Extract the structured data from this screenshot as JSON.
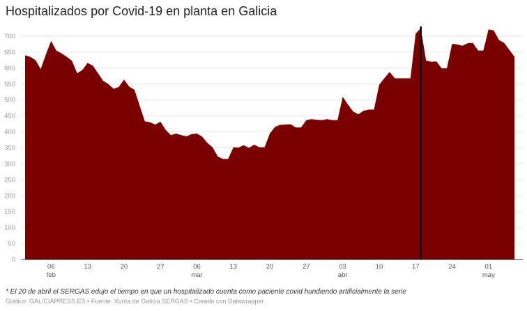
{
  "title": "Hospitalizados por Covid-19 en planta en Galicia",
  "note": "* El 20 de abril el SERGAS edujo el tiempo en que un hospitalizado cuenta como paciente covid hundiendo artificialmente la serie",
  "source": "Gráfico: GALICIAPRESS.ES • Fuente: Xunta de Galicia SERGAS • Creado con Datawrapper",
  "chart_data": {
    "type": "area",
    "title": "Hospitalizados por Covid-19 en planta en Galicia",
    "xlabel": "",
    "ylabel": "",
    "ylim": [
      0,
      700
    ],
    "yticks": [
      0,
      50,
      100,
      150,
      200,
      250,
      300,
      350,
      400,
      450,
      500,
      550,
      600,
      650,
      700
    ],
    "grid": true,
    "color": "#7a0000",
    "x": [
      "02-01",
      "02-02",
      "02-03",
      "02-04",
      "02-05",
      "02-06",
      "02-07",
      "02-08",
      "02-09",
      "02-10",
      "02-11",
      "02-12",
      "02-13",
      "02-14",
      "02-15",
      "02-16",
      "02-17",
      "02-18",
      "02-19",
      "02-20",
      "02-21",
      "02-22",
      "02-23",
      "02-24",
      "02-25",
      "02-26",
      "02-27",
      "02-28",
      "03-01",
      "03-02",
      "03-03",
      "03-04",
      "03-05",
      "03-06",
      "03-07",
      "03-08",
      "03-09",
      "03-10",
      "03-11",
      "03-12",
      "03-13",
      "03-14",
      "03-15",
      "03-16",
      "03-17",
      "03-18",
      "03-19",
      "03-20",
      "03-21",
      "03-22",
      "03-23",
      "03-24",
      "03-25",
      "03-26",
      "03-27",
      "03-28",
      "03-29",
      "03-30",
      "03-31",
      "04-01",
      "04-02",
      "04-03",
      "04-04",
      "04-05",
      "04-06",
      "04-07",
      "04-08",
      "04-09",
      "04-10",
      "04-11",
      "04-12",
      "04-13",
      "04-14",
      "04-15",
      "04-16",
      "04-17",
      "04-18",
      "04-19",
      "04-20",
      "04-21",
      "04-22",
      "04-23",
      "04-24",
      "04-25",
      "04-26",
      "04-27",
      "04-28",
      "04-29",
      "04-30",
      "05-01",
      "05-02",
      "05-03",
      "05-04",
      "05-05",
      "05-06"
    ],
    "values": [
      640,
      635,
      625,
      597,
      643,
      685,
      655,
      646,
      635,
      623,
      584,
      594,
      616,
      608,
      584,
      560,
      550,
      535,
      541,
      564,
      542,
      532,
      483,
      433,
      430,
      423,
      432,
      406,
      390,
      395,
      390,
      386,
      393,
      395,
      385,
      366,
      352,
      323,
      315,
      315,
      352,
      351,
      358,
      350,
      360,
      352,
      352,
      395,
      416,
      422,
      423,
      424,
      414,
      414,
      437,
      440,
      438,
      437,
      440,
      437,
      437,
      510,
      486,
      464,
      455,
      466,
      470,
      470,
      548,
      568,
      588,
      568,
      568,
      568,
      568,
      708,
      725,
      623,
      620,
      621,
      599,
      599,
      676,
      674,
      670,
      678,
      679,
      655,
      655,
      721,
      718,
      688,
      679,
      657,
      635
    ],
    "xticks": [
      {
        "x": "02-06",
        "day": "06",
        "month": "feb"
      },
      {
        "x": "02-13",
        "day": "13",
        "month": ""
      },
      {
        "x": "02-20",
        "day": "20",
        "month": ""
      },
      {
        "x": "02-27",
        "day": "27",
        "month": ""
      },
      {
        "x": "03-06",
        "day": "06",
        "month": "mar"
      },
      {
        "x": "03-13",
        "day": "13",
        "month": ""
      },
      {
        "x": "03-20",
        "day": "20",
        "month": ""
      },
      {
        "x": "03-27",
        "day": "27",
        "month": ""
      },
      {
        "x": "04-03",
        "day": "03",
        "month": "abr"
      },
      {
        "x": "04-10",
        "day": "10",
        "month": ""
      },
      {
        "x": "04-17",
        "day": "17",
        "month": ""
      },
      {
        "x": "04-24",
        "day": "24",
        "month": ""
      },
      {
        "x": "05-01",
        "day": "01",
        "month": "may"
      }
    ],
    "annotation_line": {
      "x": "04-18",
      "color": "#000000"
    }
  }
}
